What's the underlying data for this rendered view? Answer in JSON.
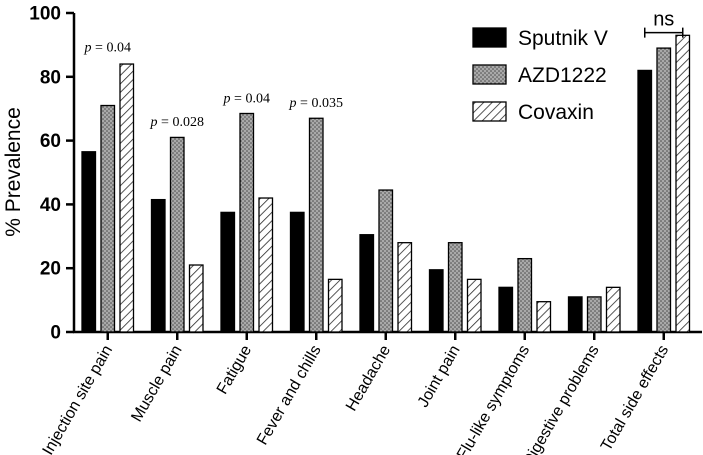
{
  "chart_data": {
    "type": "bar",
    "title": "",
    "xlabel": "",
    "ylabel": "% Prevalence",
    "ylim": [
      0,
      100
    ],
    "yticks": [
      0,
      20,
      40,
      60,
      80,
      100
    ],
    "grid": false,
    "legend_position": "top-right",
    "categories": [
      "Injection site pain",
      "Muscle pain",
      "Fatigue",
      "Fever and chills",
      "Headache",
      "Joint pain",
      "Flu-like symptoms",
      "Digestive problems",
      "Total side effects"
    ],
    "series": [
      {
        "name": "Sputnik V",
        "pattern": "solid",
        "values": [
          56.5,
          41.5,
          37.5,
          37.5,
          30.5,
          19.5,
          14,
          11,
          82
        ]
      },
      {
        "name": "AZD1222",
        "pattern": "dotted",
        "values": [
          71,
          61,
          68.5,
          67,
          44.5,
          28,
          23,
          11,
          89
        ]
      },
      {
        "name": "Covaxin",
        "pattern": "hatched",
        "values": [
          84,
          21,
          42,
          16.5,
          28,
          16.5,
          9.5,
          14,
          93
        ]
      }
    ],
    "annotations": [
      {
        "category_index": 0,
        "y": 88,
        "p_label": "p",
        "text": " = 0.04"
      },
      {
        "category_index": 1,
        "y": 64.5,
        "p_label": "p",
        "text": " = 0.028"
      },
      {
        "category_index": 2,
        "y": 72,
        "p_label": "p",
        "text": " = 0.04"
      },
      {
        "category_index": 3,
        "y": 70.5,
        "p_label": "p",
        "text": " = 0.035"
      }
    ],
    "significance_bracket": {
      "category_index": 8,
      "y": 97,
      "text": "ns"
    },
    "colors": {
      "bar_fill_dark": "#000000",
      "bar_fill_gray": "#a6a6a6",
      "hatch": "#333333"
    }
  }
}
